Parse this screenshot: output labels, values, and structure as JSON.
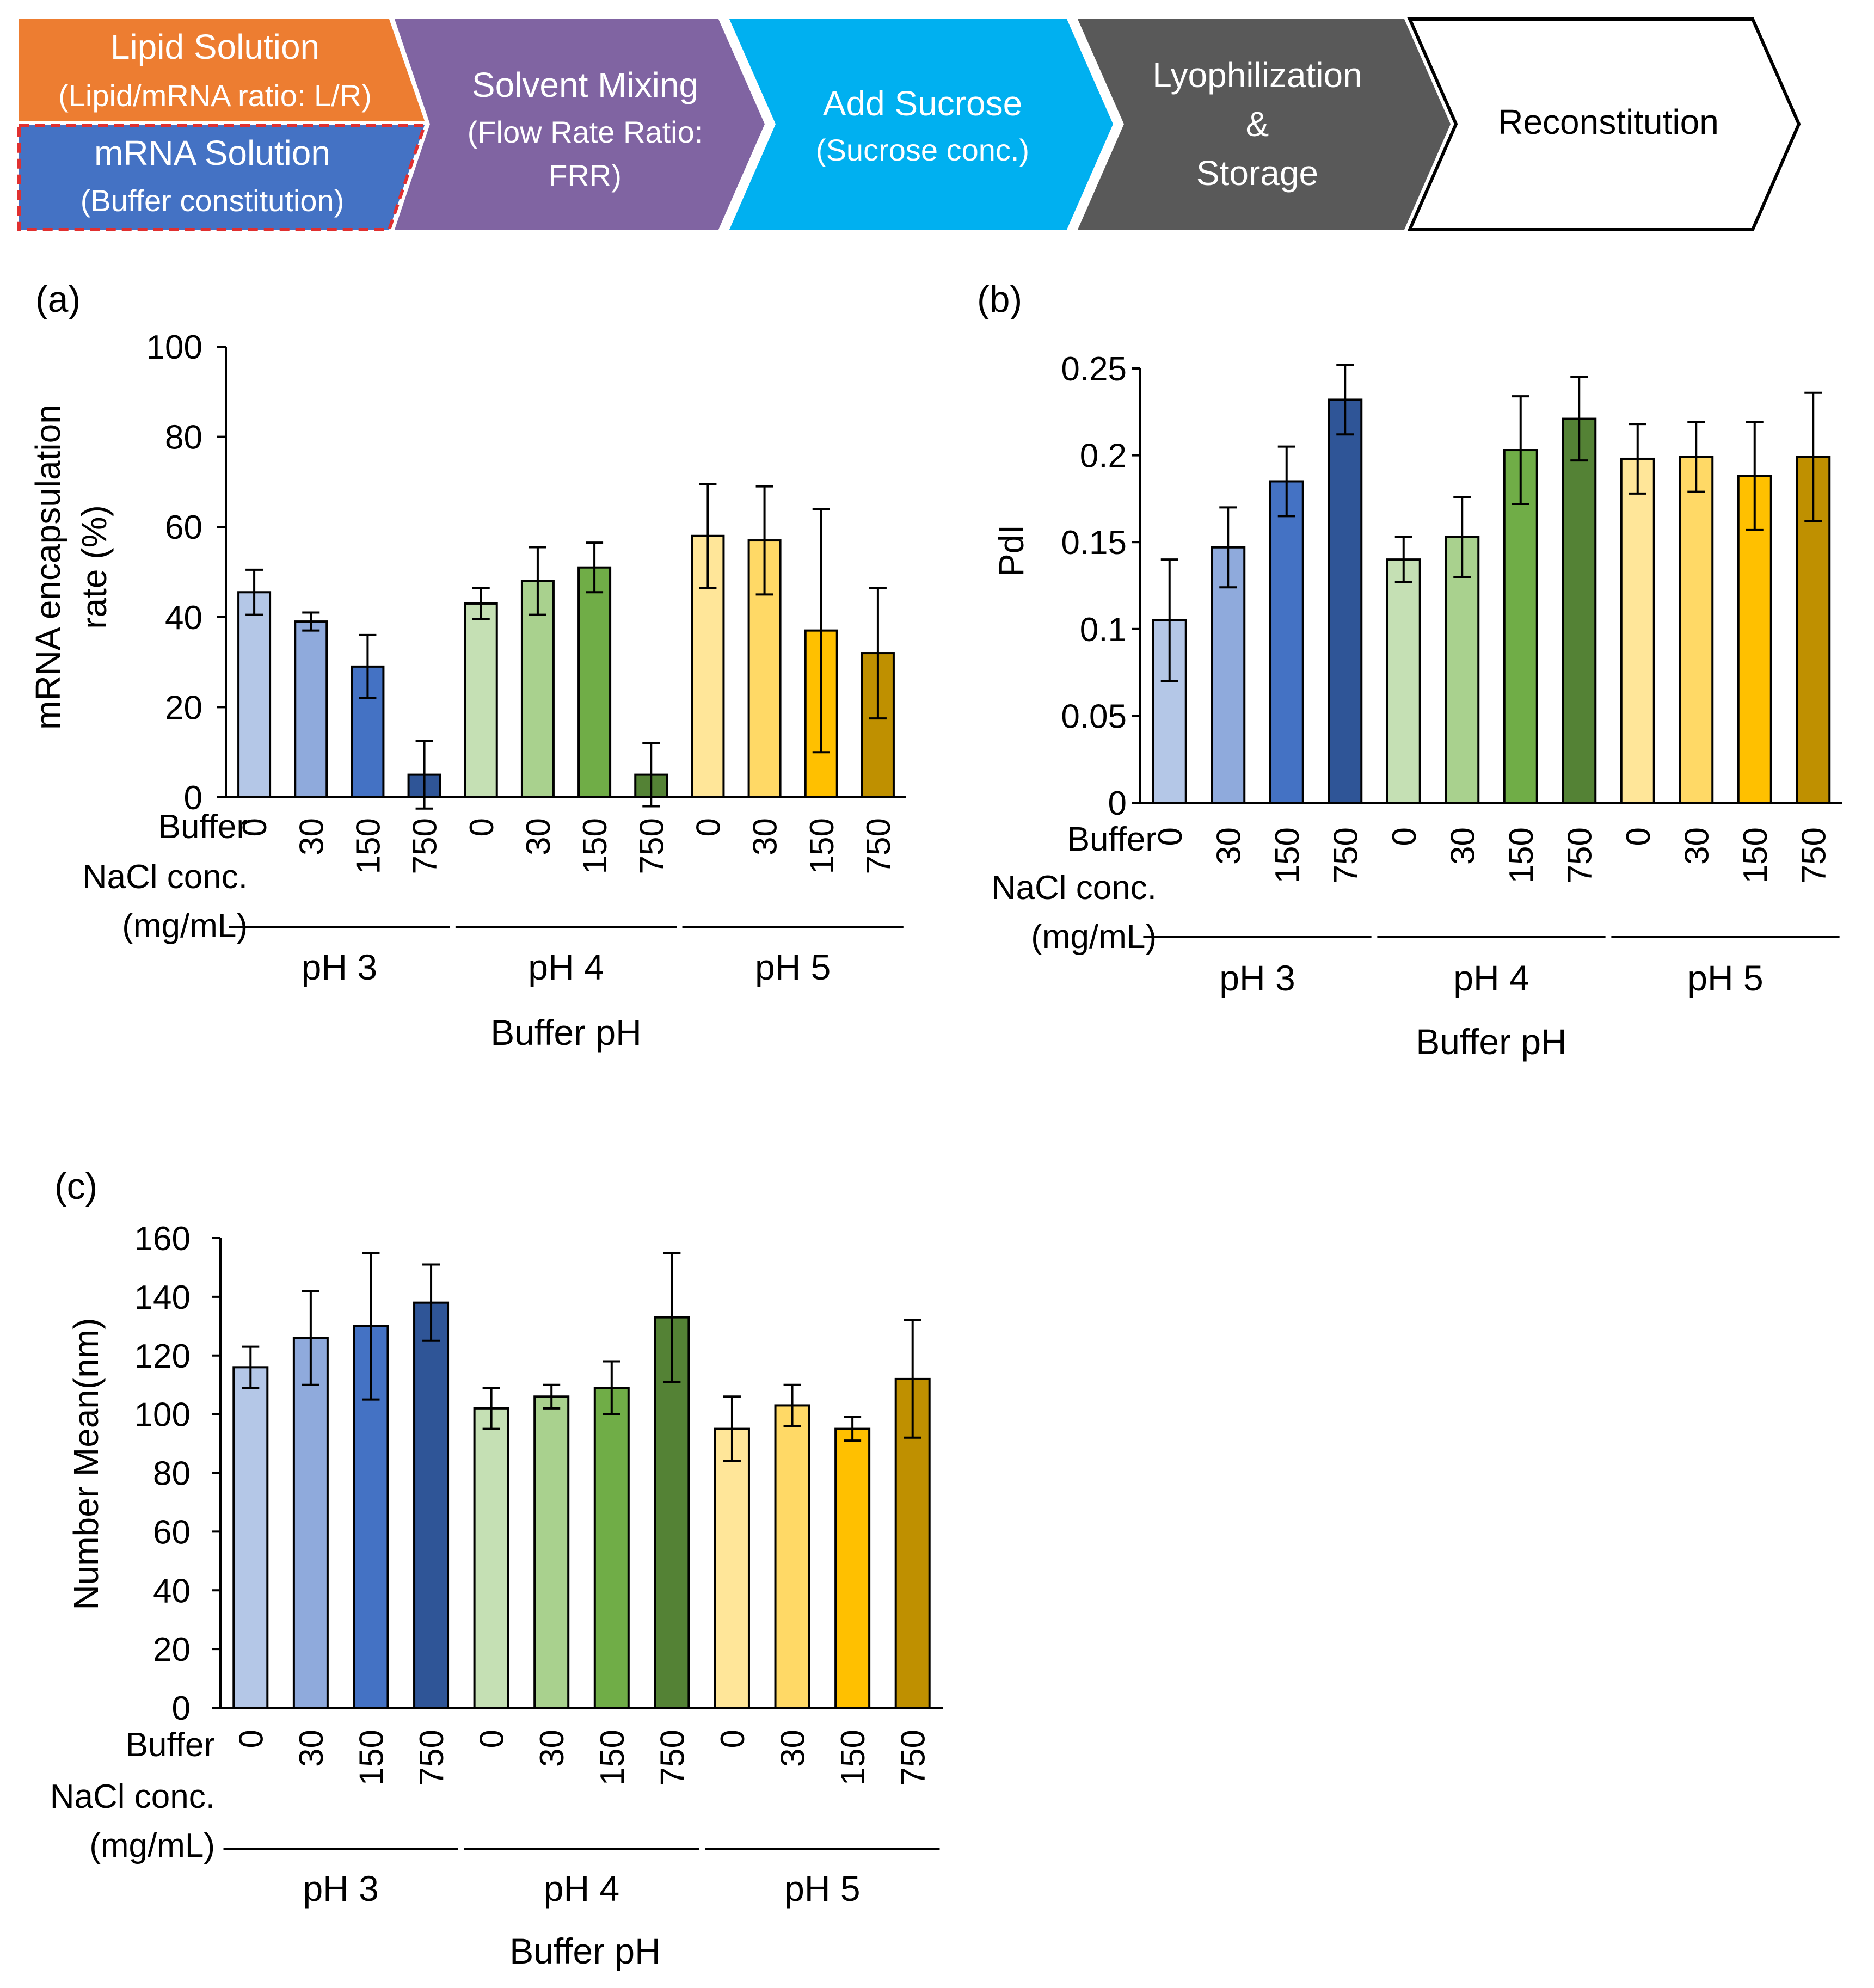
{
  "flow": {
    "steps": [
      {
        "title": "Lipid Solution",
        "sub": "(Lipid/mRNA  ratio: L/R)",
        "fill": "#ED7D31",
        "text_color": "#ffffff"
      },
      {
        "title": "mRNA Solution",
        "sub": "(Buffer constitution)",
        "fill": "#4472C4",
        "text_color": "#ffffff",
        "highlight": "#E03030"
      },
      {
        "title": "Solvent Mixing",
        "sub1": "(Flow Rate  Ratio:",
        "sub2": "FRR)",
        "fill": "#8064A2",
        "text_color": "#ffffff"
      },
      {
        "title": "Add Sucrose",
        "sub": "(Sucrose conc.)",
        "fill": "#00B0F0",
        "text_color": "#ffffff"
      },
      {
        "title1": "Lyophilization",
        "title2": "&",
        "title3": "Storage",
        "fill": "#595959",
        "text_color": "#ffffff"
      },
      {
        "title": "Reconstitution",
        "fill": "#ffffff",
        "text_color": "#000000"
      }
    ]
  },
  "shared": {
    "row_label_1": "Buffer",
    "row_label_2": "NaCl conc.",
    "row_label_3": "(mg/mL)",
    "groups": [
      "pH 3",
      "pH 4",
      "pH 5"
    ],
    "nacl": [
      "0",
      "30",
      "150",
      "750"
    ],
    "xlabel": "Buffer pH",
    "colors": [
      "#B4C7E7",
      "#8FAADC",
      "#4472C4",
      "#2F5597",
      "#C5E0B4",
      "#A9D18E",
      "#70AD47",
      "#548235",
      "#FFE699",
      "#FFD966",
      "#FFC000",
      "#BF9000"
    ]
  },
  "chart_data": [
    {
      "panel": "(a)",
      "type": "bar",
      "title": "",
      "ylabel_line1": "mRNA encapsulation",
      "ylabel_line2": "rate (%)",
      "xlabel": "Buffer pH",
      "ylim": [
        0,
        100
      ],
      "yticks": [
        0,
        20,
        40,
        60,
        80,
        100
      ],
      "ytick_labels": [
        "0",
        "20",
        "40",
        "60",
        "80",
        "100"
      ],
      "categories": [
        "pH 3 / 0",
        "pH 3 / 30",
        "pH 3 / 150",
        "pH 3 / 750",
        "pH 4 / 0",
        "pH 4 / 30",
        "pH 4 / 150",
        "pH 4 / 750",
        "pH 5 / 0",
        "pH 5 / 30",
        "pH 5 / 150",
        "pH 5 / 750"
      ],
      "values": [
        45.5,
        39,
        29,
        5,
        43,
        48,
        51,
        5,
        58,
        57,
        37,
        32
      ],
      "errors": [
        5,
        2,
        7,
        7.5,
        3.5,
        7.5,
        5.5,
        7,
        11.5,
        12,
        27,
        14.5
      ]
    },
    {
      "panel": "(b)",
      "type": "bar",
      "title": "",
      "ylabel": "PdI",
      "xlabel": "Buffer pH",
      "ylim": [
        0,
        0.25
      ],
      "yticks": [
        0,
        0.05,
        0.1,
        0.15,
        0.2,
        0.25
      ],
      "ytick_labels": [
        "0",
        "0.05",
        "0.1",
        "0.15",
        "0.2",
        "0.25"
      ],
      "categories": [
        "pH 3 / 0",
        "pH 3 / 30",
        "pH 3 / 150",
        "pH 3 / 750",
        "pH 4 / 0",
        "pH 4 / 30",
        "pH 4 / 150",
        "pH 4 / 750",
        "pH 5 / 0",
        "pH 5 / 30",
        "pH 5 / 150",
        "pH 5 / 750"
      ],
      "values": [
        0.105,
        0.147,
        0.185,
        0.232,
        0.14,
        0.153,
        0.203,
        0.221,
        0.198,
        0.199,
        0.188,
        0.199
      ],
      "errors": [
        0.035,
        0.023,
        0.02,
        0.02,
        0.013,
        0.023,
        0.031,
        0.024,
        0.02,
        0.02,
        0.031,
        0.037
      ]
    },
    {
      "panel": "(c)",
      "type": "bar",
      "title": "",
      "ylabel": "Number Mean(nm)",
      "xlabel": "Buffer pH",
      "ylim": [
        0,
        160
      ],
      "yticks": [
        0,
        20,
        40,
        60,
        80,
        100,
        120,
        140,
        160
      ],
      "ytick_labels": [
        "0",
        "20",
        "40",
        "60",
        "80",
        "100",
        "120",
        "140",
        "160"
      ],
      "categories": [
        "pH 3 / 0",
        "pH 3 / 30",
        "pH 3 / 150",
        "pH 3 / 750",
        "pH 4 / 0",
        "pH 4 / 30",
        "pH 4 / 150",
        "pH 4 / 750",
        "pH 5 / 0",
        "pH 5 / 30",
        "pH 5 / 150",
        "pH 5 / 750"
      ],
      "values": [
        116,
        126,
        130,
        138,
        102,
        106,
        109,
        133,
        95,
        103,
        95,
        112
      ],
      "errors": [
        7,
        16,
        25,
        13,
        7,
        4,
        9,
        22,
        11,
        7,
        4,
        20
      ]
    }
  ]
}
